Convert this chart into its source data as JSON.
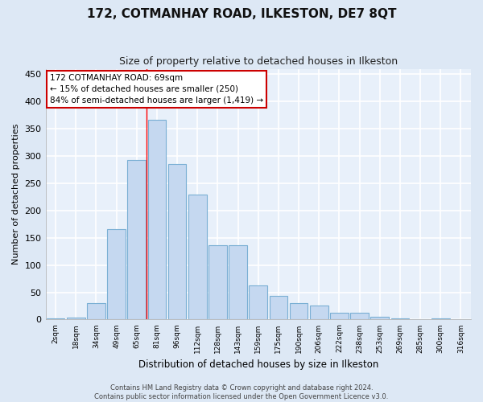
{
  "title": "172, COTMANHAY ROAD, ILKESTON, DE7 8QT",
  "subtitle": "Size of property relative to detached houses in Ilkeston",
  "xlabel": "Distribution of detached houses by size in Ilkeston",
  "ylabel": "Number of detached properties",
  "footer_line1": "Contains HM Land Registry data © Crown copyright and database right 2024.",
  "footer_line2": "Contains public sector information licensed under the Open Government Licence v3.0.",
  "categories": [
    "2sqm",
    "18sqm",
    "34sqm",
    "49sqm",
    "65sqm",
    "81sqm",
    "96sqm",
    "112sqm",
    "128sqm",
    "143sqm",
    "159sqm",
    "175sqm",
    "190sqm",
    "206sqm",
    "222sqm",
    "238sqm",
    "253sqm",
    "269sqm",
    "285sqm",
    "300sqm",
    "316sqm"
  ],
  "bar_values": [
    2,
    3,
    30,
    166,
    293,
    366,
    286,
    229,
    136,
    136,
    62,
    43,
    30,
    26,
    13,
    13,
    5,
    2,
    1,
    2,
    1
  ],
  "bar_color": "#c5d8f0",
  "bar_edge_color": "#7aafd4",
  "vline_x": 4.5,
  "vline_color": "red",
  "annotation_title": "172 COTMANHAY ROAD: 69sqm",
  "annotation_line1": "← 15% of detached houses are smaller (250)",
  "annotation_line2": "84% of semi-detached houses are larger (1,419) →",
  "annotation_box_color": "white",
  "annotation_box_edge": "#cc0000",
  "ylim": [
    0,
    460
  ],
  "yticks": [
    0,
    50,
    100,
    150,
    200,
    250,
    300,
    350,
    400,
    450
  ],
  "bg_color": "#dde8f5",
  "plot_bg_color": "#e8f0fa",
  "grid_color": "#ffffff",
  "title_fontsize": 11,
  "subtitle_fontsize": 9,
  "figsize": [
    6.0,
    5.0
  ],
  "dpi": 100
}
